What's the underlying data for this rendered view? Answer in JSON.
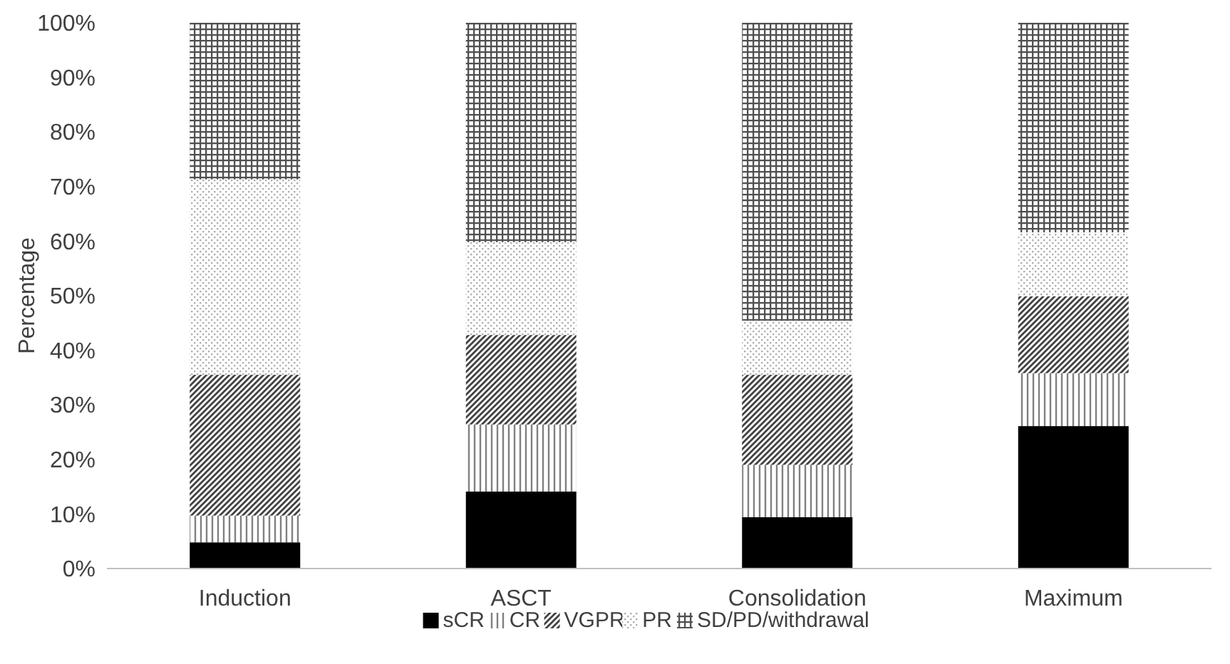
{
  "chart_data": {
    "type": "bar",
    "stacked": true,
    "ylabel": "Percentage",
    "categories": [
      "Induction",
      "ASCT",
      "Consolidation",
      "Maximum"
    ],
    "series": [
      {
        "name": "sCR",
        "color": "#000000",
        "values": [
          4.8,
          14.1,
          9.4,
          26.1
        ]
      },
      {
        "name": "CR",
        "color": "#808080",
        "values": [
          4.9,
          12.3,
          9.6,
          9.7
        ]
      },
      {
        "name": "VGPR",
        "color": "#404040",
        "values": [
          25.8,
          16.4,
          16.5,
          14.1
        ]
      },
      {
        "name": "PR",
        "color": "#b0b0b0",
        "values": [
          35.8,
          17.0,
          9.9,
          11.7
        ]
      },
      {
        "name": "SD/PD/withdrawal",
        "color": "#505050",
        "values": [
          28.7,
          40.2,
          54.6,
          38.4
        ]
      }
    ],
    "ylim": [
      0,
      100
    ],
    "yticks": [
      {
        "value": 0,
        "label": "0%"
      },
      {
        "value": 10,
        "label": "10%"
      },
      {
        "value": 20,
        "label": "20%"
      },
      {
        "value": 30,
        "label": "30%"
      },
      {
        "value": 40,
        "label": "40%"
      },
      {
        "value": 50,
        "label": "50%"
      },
      {
        "value": 60,
        "label": "60%"
      },
      {
        "value": 70,
        "label": "70%"
      },
      {
        "value": 80,
        "label": "80%"
      },
      {
        "value": 90,
        "label": "90%"
      },
      {
        "value": 100,
        "label": "100%"
      }
    ],
    "grid": false,
    "legend": "bottom"
  }
}
